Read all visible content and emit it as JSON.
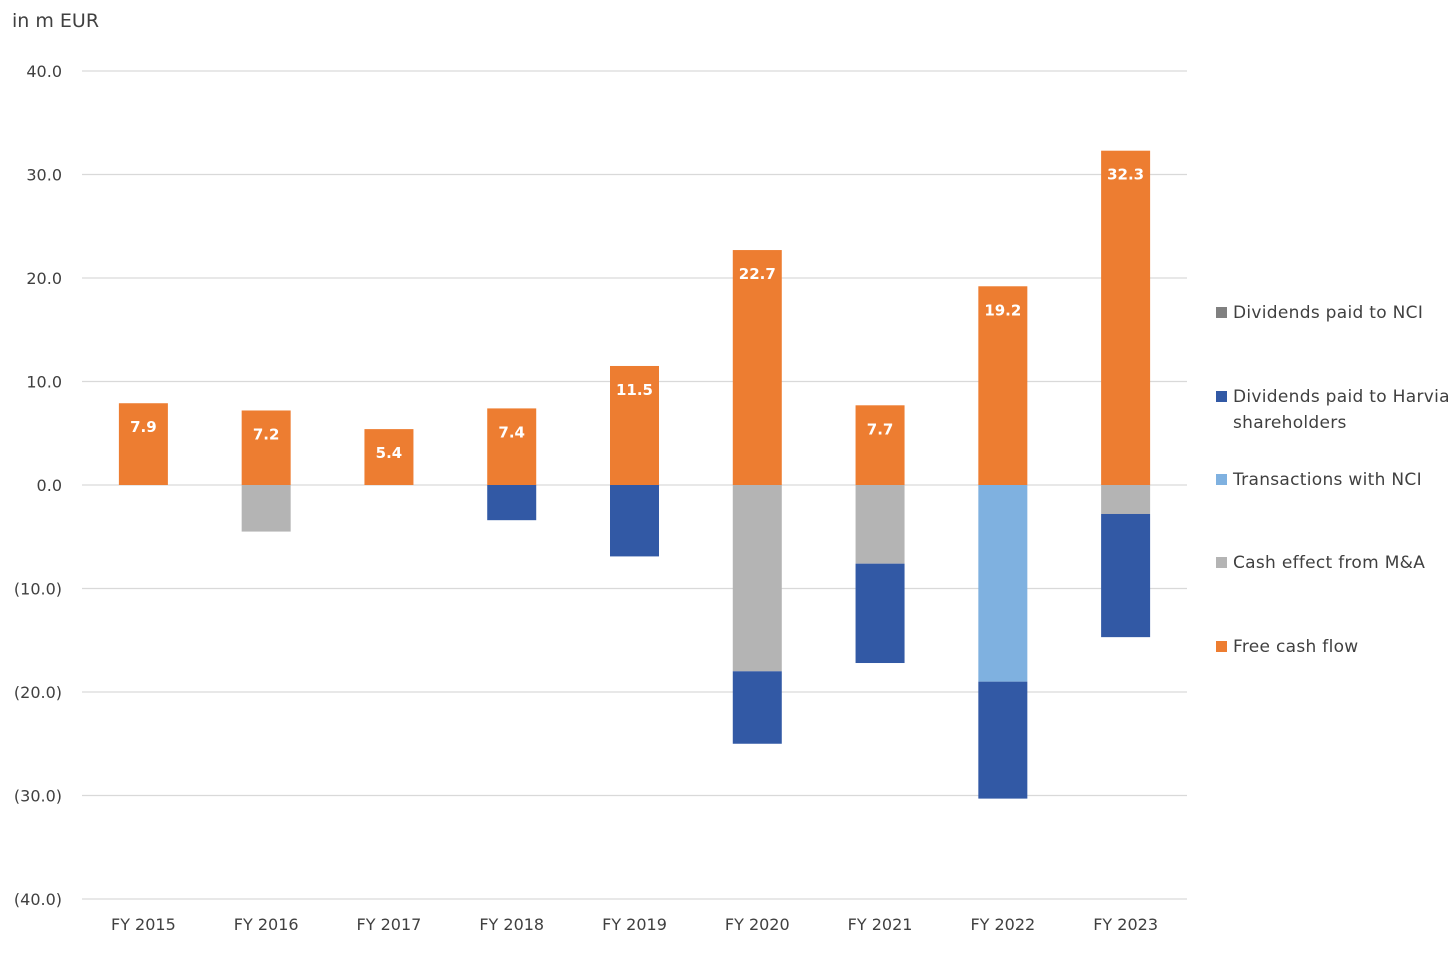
{
  "unit_label": "in m EUR",
  "chart_data": {
    "type": "bar",
    "stacked": true,
    "title": "",
    "xlabel": "",
    "ylabel": "in m EUR",
    "ylim": [
      -40,
      40
    ],
    "yticks": [
      40,
      30,
      20,
      10,
      0,
      -10,
      -20,
      -30,
      -40
    ],
    "ytick_labels": [
      "40.0",
      "30.0",
      "20.0",
      "10.0",
      "0.0",
      "(10.0)",
      "(20.0)",
      "(30.0)",
      "(40.0)"
    ],
    "grid": true,
    "legend_position": "right",
    "categories": [
      "FY 2015",
      "FY 2016",
      "FY 2017",
      "FY 2018",
      "FY 2019",
      "FY 2020",
      "FY 2021",
      "FY 2022",
      "FY 2023"
    ],
    "series": [
      {
        "name": "Free cash flow",
        "color": "#ED7D31",
        "values": [
          7.9,
          7.2,
          5.4,
          7.4,
          11.5,
          22.7,
          7.7,
          19.2,
          32.3
        ],
        "data_labels": [
          "7.9",
          "7.2",
          "5.4",
          "7.4",
          "11.5",
          "22.7",
          "7.7",
          "19.2",
          "32.3"
        ]
      },
      {
        "name": "Cash effect from M&A",
        "color": "#B4B4B4",
        "values": [
          0,
          -4.5,
          0,
          0,
          0,
          -18.0,
          -7.6,
          0,
          -2.8
        ]
      },
      {
        "name": "Transactions with NCI",
        "color": "#7FB1E0",
        "values": [
          0,
          0,
          0,
          0,
          0,
          0,
          0,
          -19.0,
          0
        ]
      },
      {
        "name": "Dividends paid to Harvia shareholders",
        "color": "#3259A5",
        "values": [
          0,
          0,
          0,
          -3.4,
          -6.9,
          -7.0,
          -9.6,
          -11.3,
          -11.9
        ]
      },
      {
        "name": "Dividends paid to NCI",
        "color": "#808080",
        "values": [
          0,
          0,
          0,
          0,
          0,
          0,
          0,
          0,
          0
        ]
      }
    ],
    "legend": [
      {
        "label": "Dividends paid to NCI",
        "color": "#808080"
      },
      {
        "label": "Dividends paid to Harvia shareholders",
        "color": "#3259A5"
      },
      {
        "label": "Transactions with NCI",
        "color": "#7FB1E0"
      },
      {
        "label": "Cash effect from M&A",
        "color": "#B4B4B4"
      },
      {
        "label": "Free cash flow",
        "color": "#ED7D31"
      }
    ]
  }
}
